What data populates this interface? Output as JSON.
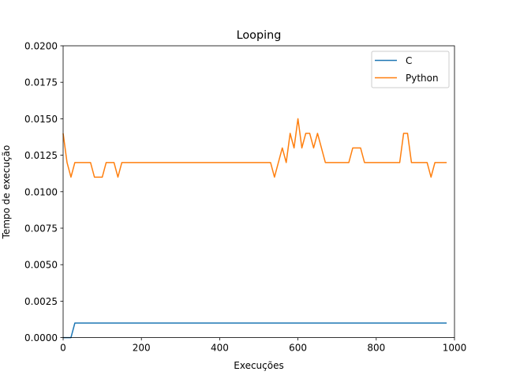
{
  "chart_data": {
    "type": "line",
    "title": "Looping",
    "xlabel": "Execuções",
    "ylabel": "Tempo de execução",
    "xlim": [
      0,
      1000
    ],
    "ylim": [
      0,
      0.02
    ],
    "xticks": [
      0,
      200,
      400,
      600,
      800,
      1000
    ],
    "xtick_labels": [
      "0",
      "200",
      "400",
      "600",
      "800",
      "1000"
    ],
    "yticks": [
      0,
      0.0025,
      0.005,
      0.0075,
      0.01,
      0.0125,
      0.015,
      0.0175,
      0.02
    ],
    "ytick_labels": [
      "0.0000",
      "0.0025",
      "0.0050",
      "0.0075",
      "0.0100",
      "0.0125",
      "0.0150",
      "0.0175",
      "0.0200"
    ],
    "grid": false,
    "legend_position": "top-right",
    "x": [
      0,
      10,
      20,
      30,
      40,
      50,
      60,
      70,
      80,
      90,
      100,
      110,
      120,
      130,
      140,
      150,
      160,
      170,
      180,
      190,
      200,
      210,
      220,
      230,
      240,
      250,
      260,
      270,
      280,
      290,
      300,
      310,
      320,
      330,
      340,
      350,
      360,
      370,
      380,
      390,
      400,
      410,
      420,
      430,
      440,
      450,
      460,
      470,
      480,
      490,
      500,
      510,
      520,
      530,
      540,
      550,
      560,
      570,
      580,
      590,
      600,
      610,
      620,
      630,
      640,
      650,
      660,
      670,
      680,
      690,
      700,
      710,
      720,
      730,
      740,
      750,
      760,
      770,
      780,
      790,
      800,
      810,
      820,
      830,
      840,
      850,
      860,
      870,
      880,
      890,
      900,
      910,
      920,
      930,
      940,
      950,
      960,
      970,
      980
    ],
    "series": [
      {
        "name": "C",
        "color": "#1f77b4",
        "values": [
          0,
          0,
          0,
          0.001,
          0.001,
          0.001,
          0.001,
          0.001,
          0.001,
          0.001,
          0.001,
          0.001,
          0.001,
          0.001,
          0.001,
          0.001,
          0.001,
          0.001,
          0.001,
          0.001,
          0.001,
          0.001,
          0.001,
          0.001,
          0.001,
          0.001,
          0.001,
          0.001,
          0.001,
          0.001,
          0.001,
          0.001,
          0.001,
          0.001,
          0.001,
          0.001,
          0.001,
          0.001,
          0.001,
          0.001,
          0.001,
          0.001,
          0.001,
          0.001,
          0.001,
          0.001,
          0.001,
          0.001,
          0.001,
          0.001,
          0.001,
          0.001,
          0.001,
          0.001,
          0.001,
          0.001,
          0.001,
          0.001,
          0.001,
          0.001,
          0.001,
          0.001,
          0.001,
          0.001,
          0.001,
          0.001,
          0.001,
          0.001,
          0.001,
          0.001,
          0.001,
          0.001,
          0.001,
          0.001,
          0.001,
          0.001,
          0.001,
          0.001,
          0.001,
          0.001,
          0.001,
          0.001,
          0.001,
          0.001,
          0.001,
          0.001,
          0.001,
          0.001,
          0.001,
          0.001,
          0.001,
          0.001,
          0.001,
          0.001,
          0.001,
          0.001,
          0.001,
          0.001,
          0.001
        ]
      },
      {
        "name": "Python",
        "color": "#ff7f0e",
        "values": [
          0.014,
          0.012,
          0.011,
          0.012,
          0.012,
          0.012,
          0.012,
          0.012,
          0.011,
          0.011,
          0.011,
          0.012,
          0.012,
          0.012,
          0.011,
          0.012,
          0.012,
          0.012,
          0.012,
          0.012,
          0.012,
          0.012,
          0.012,
          0.012,
          0.012,
          0.012,
          0.012,
          0.012,
          0.012,
          0.012,
          0.012,
          0.012,
          0.012,
          0.012,
          0.012,
          0.012,
          0.012,
          0.012,
          0.012,
          0.012,
          0.012,
          0.012,
          0.012,
          0.012,
          0.012,
          0.012,
          0.012,
          0.012,
          0.012,
          0.012,
          0.012,
          0.012,
          0.012,
          0.012,
          0.011,
          0.012,
          0.013,
          0.012,
          0.014,
          0.013,
          0.015,
          0.013,
          0.014,
          0.014,
          0.013,
          0.014,
          0.013,
          0.012,
          0.012,
          0.012,
          0.012,
          0.012,
          0.012,
          0.012,
          0.013,
          0.013,
          0.013,
          0.012,
          0.012,
          0.012,
          0.012,
          0.012,
          0.012,
          0.012,
          0.012,
          0.012,
          0.012,
          0.014,
          0.014,
          0.012,
          0.012,
          0.012,
          0.012,
          0.012,
          0.011,
          0.012,
          0.012,
          0.012,
          0.012
        ]
      }
    ]
  }
}
